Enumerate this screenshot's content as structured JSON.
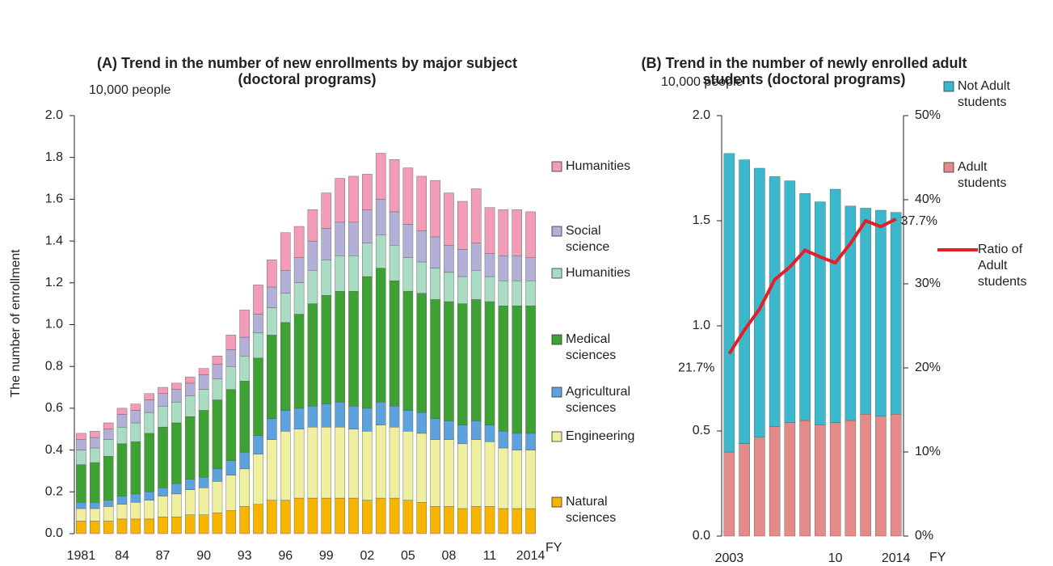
{
  "chart_data": [
    {
      "type": "bar",
      "stacked": true,
      "title": "(A) Trend in the number of new enrollments by major subject (doctoral programs)",
      "unit_label": "10,000 people",
      "ylabel": "The number of enrollment",
      "xlabel": "FY",
      "categories": [
        "1981",
        null,
        null,
        "84",
        null,
        null,
        "87",
        null,
        null,
        "90",
        null,
        null,
        "93",
        null,
        null,
        "96",
        null,
        null,
        "99",
        null,
        null,
        "02",
        null,
        null,
        "05",
        null,
        null,
        "08",
        null,
        null,
        "11",
        null,
        null,
        "2014"
      ],
      "ylim": [
        0,
        2
      ],
      "yticks": [
        {
          "value": 0,
          "label": "0.0"
        },
        0.2,
        0.4,
        0.6,
        0.8,
        {
          "value": 1,
          "label": "1.0"
        },
        1.2,
        1.4,
        1.6,
        1.8,
        {
          "value": 2,
          "label": "2.0"
        }
      ],
      "series": [
        {
          "name": "Natural sciences",
          "color": "#f7b500",
          "values": [
            0.06,
            0.06,
            0.06,
            0.07,
            0.07,
            0.07,
            0.08,
            0.08,
            0.09,
            0.09,
            0.1,
            0.11,
            0.13,
            0.14,
            0.16,
            0.16,
            0.17,
            0.17,
            0.17,
            0.17,
            0.17,
            0.16,
            0.17,
            0.17,
            0.16,
            0.15,
            0.13,
            0.13,
            0.12,
            0.13,
            0.13,
            0.12,
            0.12,
            0.12
          ]
        },
        {
          "name": "Engineering",
          "color": "#eef0a0",
          "values": [
            0.06,
            0.06,
            0.07,
            0.07,
            0.08,
            0.09,
            0.1,
            0.11,
            0.12,
            0.13,
            0.15,
            0.17,
            0.18,
            0.24,
            0.29,
            0.33,
            0.33,
            0.34,
            0.34,
            0.34,
            0.33,
            0.33,
            0.35,
            0.34,
            0.33,
            0.33,
            0.32,
            0.32,
            0.31,
            0.32,
            0.31,
            0.29,
            0.28,
            0.28
          ]
        },
        {
          "name": "Agricultural sciences",
          "color": "#5da2dc",
          "values": [
            0.03,
            0.03,
            0.03,
            0.04,
            0.04,
            0.04,
            0.04,
            0.05,
            0.05,
            0.05,
            0.06,
            0.07,
            0.08,
            0.09,
            0.1,
            0.1,
            0.1,
            0.1,
            0.11,
            0.12,
            0.11,
            0.11,
            0.11,
            0.1,
            0.1,
            0.1,
            0.1,
            0.09,
            0.09,
            0.09,
            0.08,
            0.08,
            0.08,
            0.08
          ]
        },
        {
          "name": "Medical sciences",
          "color": "#3ea133",
          "values": [
            0.18,
            0.19,
            0.21,
            0.25,
            0.25,
            0.28,
            0.29,
            0.29,
            0.3,
            0.32,
            0.33,
            0.34,
            0.34,
            0.37,
            0.4,
            0.42,
            0.45,
            0.49,
            0.52,
            0.53,
            0.55,
            0.63,
            0.64,
            0.6,
            0.57,
            0.57,
            0.57,
            0.57,
            0.58,
            0.58,
            0.59,
            0.6,
            0.61,
            0.61
          ]
        },
        {
          "name": "Humanities",
          "color": "#a9dcc2",
          "values": [
            0.07,
            0.07,
            0.08,
            0.08,
            0.09,
            0.1,
            0.1,
            0.1,
            0.1,
            0.1,
            0.1,
            0.11,
            0.12,
            0.12,
            0.13,
            0.14,
            0.15,
            0.16,
            0.17,
            0.17,
            0.17,
            0.16,
            0.16,
            0.17,
            0.16,
            0.15,
            0.15,
            0.14,
            0.13,
            0.14,
            0.12,
            0.12,
            0.12,
            0.12
          ]
        },
        {
          "name": "Social science",
          "color": "#b3b0d8",
          "values": [
            0.05,
            0.05,
            0.05,
            0.06,
            0.06,
            0.06,
            0.06,
            0.06,
            0.06,
            0.07,
            0.07,
            0.08,
            0.09,
            0.09,
            0.1,
            0.11,
            0.12,
            0.14,
            0.15,
            0.16,
            0.16,
            0.16,
            0.17,
            0.16,
            0.16,
            0.15,
            0.15,
            0.13,
            0.13,
            0.13,
            0.11,
            0.12,
            0.12,
            0.11
          ]
        },
        {
          "name": "Humanities",
          "color": "#f39cb7",
          "values": [
            0.03,
            0.03,
            0.03,
            0.03,
            0.03,
            0.03,
            0.03,
            0.03,
            0.03,
            0.03,
            0.04,
            0.07,
            0.13,
            0.14,
            0.13,
            0.18,
            0.15,
            0.15,
            0.17,
            0.21,
            0.22,
            0.17,
            0.22,
            0.25,
            0.27,
            0.26,
            0.27,
            0.25,
            0.23,
            0.26,
            0.22,
            0.22,
            0.22,
            0.22
          ]
        }
      ]
    },
    {
      "type": "combo",
      "stacked": true,
      "title": "(B) Trend in the number of newly enrolled adult students (doctoral programs)",
      "unit_label": "10,000 people",
      "xlabel": "FY",
      "categories": [
        "2003",
        null,
        null,
        null,
        null,
        null,
        null,
        "10",
        null,
        null,
        null,
        "2014"
      ],
      "ylim": [
        0,
        2
      ],
      "yticks": [
        {
          "value": 0,
          "label": "0.0"
        },
        0.5,
        {
          "value": 1,
          "label": "1.0"
        },
        1.5,
        {
          "value": 2,
          "label": "2.0"
        }
      ],
      "y2lim": [
        0,
        50
      ],
      "y2ticks": [
        {
          "value": 0,
          "label": "0%"
        },
        {
          "value": 10,
          "label": "10%"
        },
        {
          "value": 20,
          "label": "20%"
        },
        {
          "value": 30,
          "label": "30%"
        },
        {
          "value": 40,
          "label": "40%"
        },
        {
          "value": 50,
          "label": "50%"
        }
      ],
      "series": [
        {
          "name": "Adult students",
          "type": "bar",
          "color": "#e58a8a",
          "values": [
            0.4,
            0.44,
            0.47,
            0.52,
            0.54,
            0.55,
            0.53,
            0.54,
            0.55,
            0.58,
            0.57,
            0.58
          ]
        },
        {
          "name": "Not Adult students",
          "type": "bar",
          "color": "#3bb8cc",
          "values": [
            1.42,
            1.35,
            1.28,
            1.19,
            1.15,
            1.08,
            1.06,
            1.11,
            1.02,
            0.98,
            0.98,
            0.96
          ]
        },
        {
          "name": "Ratio of Adult students",
          "type": "line",
          "axis": "y2",
          "color": "#e3202a",
          "values": [
            21.7,
            24.5,
            27.0,
            30.5,
            32.0,
            34.0,
            33.2,
            32.5,
            34.8,
            37.5,
            36.8,
            37.7
          ],
          "value_labels": [
            "21.7%",
            null,
            null,
            null,
            null,
            null,
            null,
            null,
            null,
            null,
            null,
            "37.7%"
          ]
        }
      ]
    }
  ]
}
